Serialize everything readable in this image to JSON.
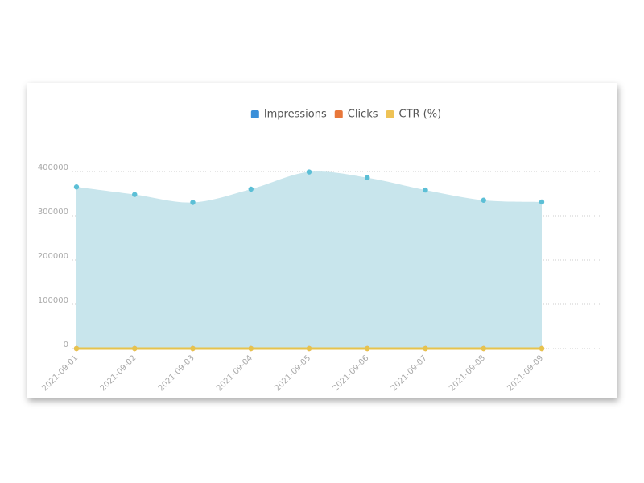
{
  "chart_data": {
    "type": "area",
    "categories": [
      "2021-09-01",
      "2021-09-02",
      "2021-09-03",
      "2021-09-04",
      "2021-09-05",
      "2021-09-06",
      "2021-09-07",
      "2021-09-08",
      "2021-09-09"
    ],
    "series": [
      {
        "name": "Impressions",
        "color": "#5cbfd6",
        "legend_color": "#3a8fd9",
        "area_color": "#c8e5ec",
        "values": [
          365000,
          348000,
          330000,
          360000,
          399000,
          386000,
          358000,
          335000,
          331000
        ]
      },
      {
        "name": "Clicks",
        "color": "#e8773a",
        "legend_color": "#e8773a",
        "values": [
          0,
          0,
          0,
          0,
          0,
          0,
          0,
          0,
          0
        ]
      },
      {
        "name": "CTR (%)",
        "color": "#e6c34d",
        "legend_color": "#eec255",
        "values": [
          0,
          0,
          0,
          0,
          0,
          0,
          0,
          0,
          0
        ]
      }
    ],
    "ylim": [
      0,
      400000
    ],
    "yticks": [
      0,
      100000,
      200000,
      300000,
      400000
    ],
    "grid": true
  }
}
